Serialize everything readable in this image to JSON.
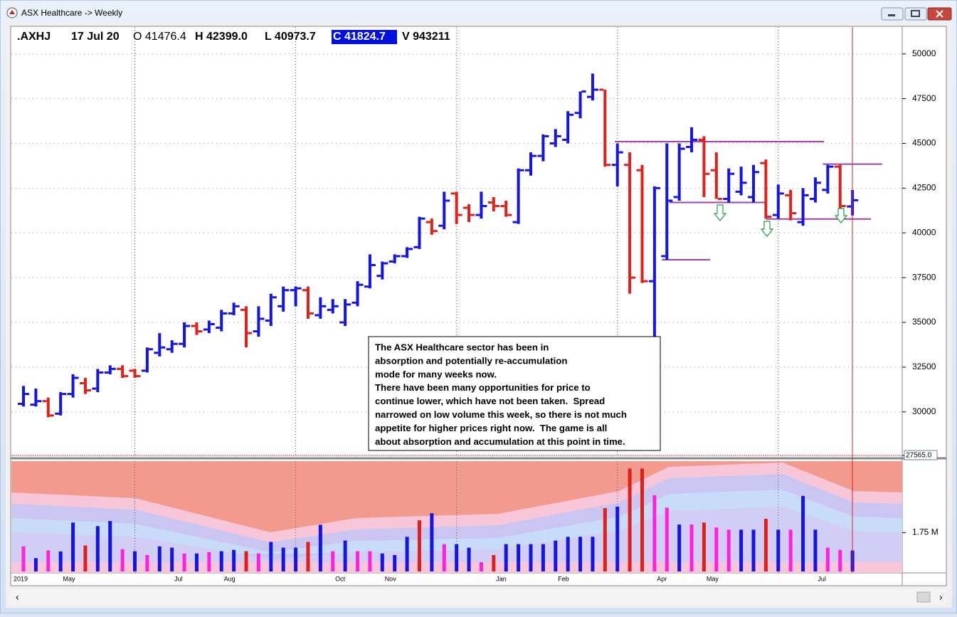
{
  "window": {
    "title": "ASX Healthcare -> Weekly"
  },
  "header": {
    "symbol": ".AXHJ",
    "date": "17 Jul 20",
    "open": "O 41476.4",
    "high": "H 42399.0",
    "low": "L 40973.7",
    "close": "C 41824.7",
    "volume": "V 943211"
  },
  "chart_data": {
    "type": "ohlc",
    "categories": [
      "2019",
      null,
      null,
      null,
      "May",
      null,
      null,
      null,
      null,
      null,
      null,
      null,
      null,
      "Jul",
      null,
      null,
      null,
      "Aug",
      null,
      null,
      null,
      null,
      null,
      null,
      null,
      null,
      "Oct",
      null,
      null,
      null,
      "Nov",
      null,
      null,
      null,
      null,
      null,
      null,
      null,
      null,
      "Jan",
      null,
      null,
      null,
      null,
      "Feb",
      null,
      null,
      null,
      null,
      null,
      null,
      null,
      "Apr",
      null,
      null,
      null,
      "May",
      null,
      null,
      null,
      null,
      null,
      null,
      null,
      null,
      "Jul",
      null,
      null
    ],
    "open": [
      30450,
      30400,
      30600,
      29900,
      31000,
      31600,
      31300,
      32200,
      32400,
      32300,
      32300,
      33300,
      33500,
      33800,
      34800,
      34600,
      34700,
      35500,
      35700,
      34500,
      35100,
      35900,
      36800,
      36800,
      35400,
      35700,
      35000,
      36100,
      37000,
      37600,
      38400,
      38700,
      39200,
      40600,
      40400,
      42200,
      41400,
      41000,
      41700,
      41500,
      40600,
      43500,
      44300,
      45000,
      45200,
      46700,
      47600,
      48000,
      43800,
      43800,
      43500,
      37300,
      38700,
      42000,
      44800,
      45200,
      43500,
      41900,
      42300,
      42000,
      43900,
      41000,
      42100,
      40600,
      41900,
      42400,
      43700,
      41476.4
    ],
    "high": [
      31450,
      31300,
      30800,
      31100,
      32100,
      31900,
      32400,
      32600,
      32600,
      32400,
      33600,
      34400,
      34000,
      35000,
      35000,
      35100,
      35700,
      36100,
      35900,
      35900,
      36600,
      37000,
      37000,
      37000,
      36400,
      36300,
      36300,
      37300,
      38800,
      38400,
      38800,
      39200,
      40900,
      40800,
      42300,
      42300,
      41600,
      42300,
      42000,
      41800,
      43600,
      44500,
      45500,
      45800,
      46800,
      47900,
      48900,
      48000,
      45000,
      44500,
      43800,
      42600,
      45000,
      45000,
      45900,
      45400,
      44500,
      43600,
      43700,
      43800,
      44100,
      42700,
      42400,
      42500,
      43100,
      43800,
      43800,
      42399
    ],
    "low": [
      30300,
      30300,
      29700,
      29800,
      30800,
      31000,
      31100,
      32100,
      31900,
      31900,
      32200,
      33100,
      33300,
      33600,
      34300,
      34400,
      34500,
      35400,
      33600,
      34200,
      34800,
      35600,
      35900,
      35200,
      35200,
      35500,
      34800,
      35900,
      36900,
      37400,
      38300,
      38600,
      39100,
      39900,
      40200,
      40500,
      40600,
      40800,
      41200,
      40900,
      40500,
      43200,
      44000,
      44800,
      45000,
      46400,
      47400,
      43700,
      42600,
      36600,
      37200,
      33800,
      38500,
      41800,
      44500,
      42000,
      41900,
      41700,
      42100,
      41700,
      40800,
      40800,
      40700,
      40400,
      41700,
      42200,
      41300,
      40973.7
    ],
    "close": [
      31000,
      30600,
      29800,
      31000,
      31900,
      31200,
      32200,
      32400,
      32000,
      32000,
      33500,
      33600,
      33800,
      34800,
      34500,
      34900,
      35500,
      35900,
      34400,
      35200,
      36400,
      36800,
      36900,
      35500,
      35900,
      35900,
      36000,
      37100,
      38200,
      38300,
      38700,
      39100,
      40800,
      40100,
      41800,
      41000,
      41000,
      41500,
      41500,
      41000,
      43500,
      44300,
      45400,
      45400,
      46600,
      47900,
      48000,
      43800,
      44500,
      37500,
      37300,
      42500,
      41800,
      44700,
      45200,
      43300,
      41900,
      43300,
      42800,
      43400,
      40900,
      42200,
      41100,
      42100,
      42800,
      43700,
      41500,
      41824.7
    ],
    "up_color": "#1414e6",
    "down_color": "#e0201a",
    "ylim": [
      27565,
      51500
    ],
    "yticks": [
      {
        "value": 27565,
        "label": "27565.0"
      },
      30000,
      32500,
      35000,
      37500,
      40000,
      42500,
      45000,
      47500,
      50000
    ],
    "grid": true,
    "xgrid": [
      9,
      22,
      35,
      48,
      61
    ],
    "levels": [
      {
        "value": 45100,
        "from": 47.8,
        "to": 64.7
      },
      {
        "value": 41700,
        "from": 52.2,
        "to": 60
      },
      {
        "value": 38500,
        "from": 51.6,
        "to": 55.5
      },
      {
        "value": 43840,
        "from": 64.6,
        "to": 69.4
      },
      {
        "value": 40775,
        "from": 60,
        "to": 68.5
      }
    ],
    "level_color": "#a040b0",
    "volume": {
      "values": [
        1130000,
        600000,
        950000,
        900000,
        2200000,
        1170000,
        2040000,
        2270000,
        1000000,
        910000,
        740000,
        1130000,
        1070000,
        810000,
        810000,
        870000,
        910000,
        970000,
        910000,
        810000,
        1330000,
        1070000,
        1070000,
        1330000,
        2100000,
        910000,
        1390000,
        910000,
        910000,
        810000,
        740000,
        1560000,
        2300000,
        2620000,
        1230000,
        1230000,
        1070000,
        420000,
        740000,
        1230000,
        1230000,
        1230000,
        1230000,
        1390000,
        1560000,
        1560000,
        1560000,
        2850000,
        2920000,
        4630000,
        4630000,
        3430000,
        2870000,
        2110000,
        2110000,
        2200000,
        1980000,
        1880000,
        1880000,
        1880000,
        2370000,
        1880000,
        1880000,
        3400000,
        1880000,
        1070000,
        970000,
        943211
      ],
      "colors": [
        "#ff22dd",
        "#1414e6",
        "#ff22dd",
        "#1414e6",
        "#1414e6",
        "#e0201a",
        "#1414e6",
        "#1414e6",
        "#ff22dd",
        "#1414e6",
        "#ff22dd",
        "#1414e6",
        "#1414e6",
        "#ff22dd",
        "#1414e6",
        "#ff22dd",
        "#1414e6",
        "#1414e6",
        "#e0201a",
        "#ff22dd",
        "#1414e6",
        "#1414e6",
        "#1414e6",
        "#e0201a",
        "#1414e6",
        "#ff22dd",
        "#1414e6",
        "#ff22dd",
        "#ff22dd",
        "#1414e6",
        "#1414e6",
        "#1414e6",
        "#e0201a",
        "#1414e6",
        "#ff22dd",
        "#1414e6",
        "#1414e6",
        "#ff22dd",
        "#e0201a",
        "#1414e6",
        "#1414e6",
        "#1414e6",
        "#1414e6",
        "#1414e6",
        "#1414e6",
        "#1414e6",
        "#1414e6",
        "#e0201a",
        "#1414e6",
        "#e0201a",
        "#e0201a",
        "#ff22dd",
        "#ff22dd",
        "#1414e6",
        "#ff22dd",
        "#e0201a",
        "#ff22dd",
        "#ff22dd",
        "#1414e6",
        "#1414e6",
        "#e0201a",
        "#1414e6",
        "#ff22dd",
        "#1414e6",
        "#1414e6",
        "#ff22dd",
        "#ff22dd",
        "#1414e6"
      ],
      "ylim": [
        0,
        4900000
      ],
      "yticks": [
        {
          "value": 1750000,
          "label": "1.75 M"
        }
      ]
    }
  },
  "annotation": {
    "lines": [
      "The ASX Healthcare sector has been in",
      "absorption and potentially re-accumulation",
      "mode for many weeks now.",
      "There have been many opportunities for price to",
      "continue lower, which have not been taken.  Spread",
      "narrowed on low volume this week, so there is not much",
      "appetite for higher prices right now.  The game is all",
      "about absorption and accumulation at this point in time."
    ]
  }
}
